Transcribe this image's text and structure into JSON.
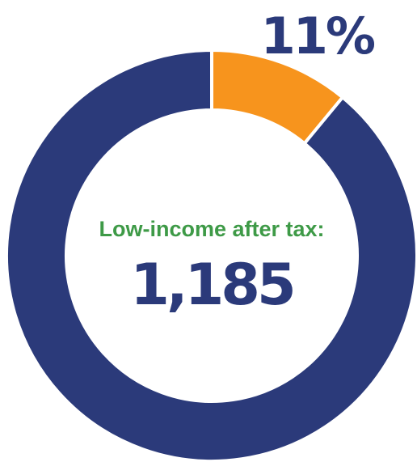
{
  "chart_data": {
    "type": "pie",
    "variant": "donut",
    "slices": [
      {
        "value": 11,
        "color": "#F7941D",
        "label": "11%"
      },
      {
        "value": 89,
        "color": "#2B3A7A"
      }
    ],
    "center": {
      "caption": "Low-income after tax:",
      "value": "1,185"
    },
    "colors": {
      "highlight": "#F7941D",
      "remainder": "#2B3A7A",
      "caption": "#3E9A47",
      "value": "#2B3A7A"
    }
  }
}
